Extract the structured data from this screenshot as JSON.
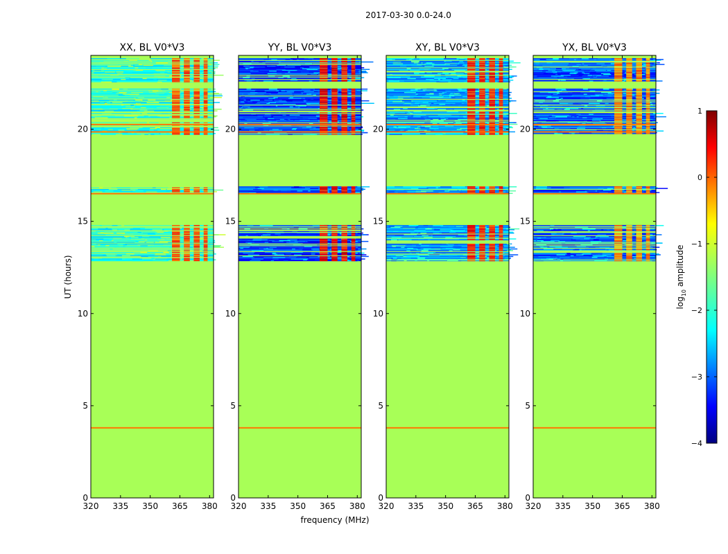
{
  "chart_data": {
    "type": "heatmap",
    "title": "2017-03-30 0.0-24.0",
    "xlabel": "frequency (MHz)",
    "ylabel": "UT (hours)",
    "xlim": [
      320,
      382
    ],
    "ylim": [
      0,
      24
    ],
    "xticks": [
      "320",
      "335",
      "350",
      "365",
      "380"
    ],
    "xtick_values": [
      320,
      335,
      350,
      365,
      380
    ],
    "yticks": [
      "0",
      "5",
      "10",
      "15",
      "20"
    ],
    "ytick_values": [
      0,
      5,
      10,
      15,
      20
    ],
    "colormap": "jet",
    "colorbar": {
      "label_prefix": "log",
      "label_sub": "10",
      "label_suffix": " amplitude",
      "range": [
        -4,
        1
      ],
      "ticks": [
        "−4",
        "−3",
        "−2",
        "−1",
        "0",
        "1"
      ],
      "tick_values": [
        -4,
        -3,
        -2,
        -1,
        0,
        1
      ]
    },
    "background_value": -1.3,
    "panels": [
      {
        "title": "XX, BL V0*V3",
        "noise_level": -2.0,
        "band_level": 0.0
      },
      {
        "title": "YY, BL V0*V3",
        "noise_level": -3.1,
        "band_level": 0.35
      },
      {
        "title": "XY, BL V0*V3",
        "noise_level": -2.6,
        "band_level": 0.2
      },
      {
        "title": "YX, BL V0*V3",
        "noise_level": -3.0,
        "band_level": -0.3
      }
    ],
    "observation_blocks_hours": [
      {
        "start": 12.85,
        "end": 14.8
      },
      {
        "start": 16.5,
        "end": 16.9
      },
      {
        "start": 19.7,
        "end": 22.2
      },
      {
        "start": 22.55,
        "end": 23.85
      }
    ],
    "bright_channel_blocks_mhz": [
      {
        "start": 361,
        "end": 365
      },
      {
        "start": 367,
        "end": 370
      },
      {
        "start": 372,
        "end": 375
      },
      {
        "start": 377,
        "end": 379
      }
    ],
    "line_features_hours": [
      3.8,
      16.5,
      19.85,
      20.25
    ]
  }
}
